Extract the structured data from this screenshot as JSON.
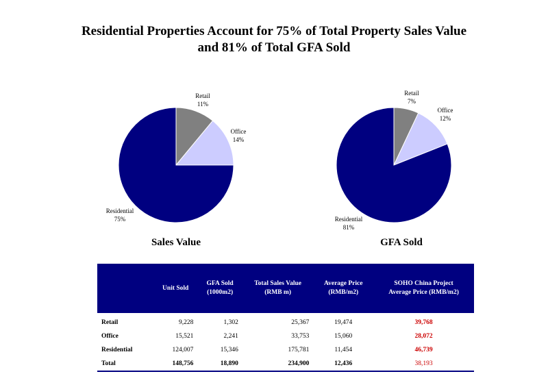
{
  "page": {
    "title_line1": "Residential Properties Account for 75% of Total Property Sales Value",
    "title_line2": "and 81% of Total GFA Sold"
  },
  "chart_data": [
    {
      "type": "pie",
      "title": "Sales Value",
      "slices": [
        {
          "label": "Retail",
          "value": 11,
          "pct_label": "11%",
          "color": "#808080"
        },
        {
          "label": "Office",
          "value": 14,
          "pct_label": "14%",
          "color": "#ccccff"
        },
        {
          "label": "Residential",
          "value": 75,
          "pct_label": "75%",
          "color": "#000080"
        }
      ]
    },
    {
      "type": "pie",
      "title": "GFA Sold",
      "slices": [
        {
          "label": "Retail",
          "value": 7,
          "pct_label": "7%",
          "color": "#808080"
        },
        {
          "label": "Office",
          "value": 12,
          "pct_label": "12%",
          "color": "#ccccff"
        },
        {
          "label": "Residential",
          "value": 81,
          "pct_label": "81%",
          "color": "#000080"
        }
      ]
    },
    {
      "type": "table",
      "headers": [
        "",
        "Unit Sold",
        "GFA Sold\n(1000m2)",
        "Total Sales Value\n(RMB m)",
        "Average Price\n(RMB/m2)",
        "SOHO China Project\nAverage Price (RMB/m2)"
      ],
      "rows": [
        [
          "Retail",
          "9,228",
          "1,302",
          "25,367",
          "19,474",
          "39,768"
        ],
        [
          "Office",
          "15,521",
          "2,241",
          "33,753",
          "15,060",
          "28,072"
        ],
        [
          "Residential",
          "124,007",
          "15,346",
          "175,781",
          "11,454",
          "46,739"
        ],
        [
          "Total",
          "148,756",
          "18,890",
          "234,900",
          "12,436",
          "38,193"
        ]
      ]
    }
  ]
}
